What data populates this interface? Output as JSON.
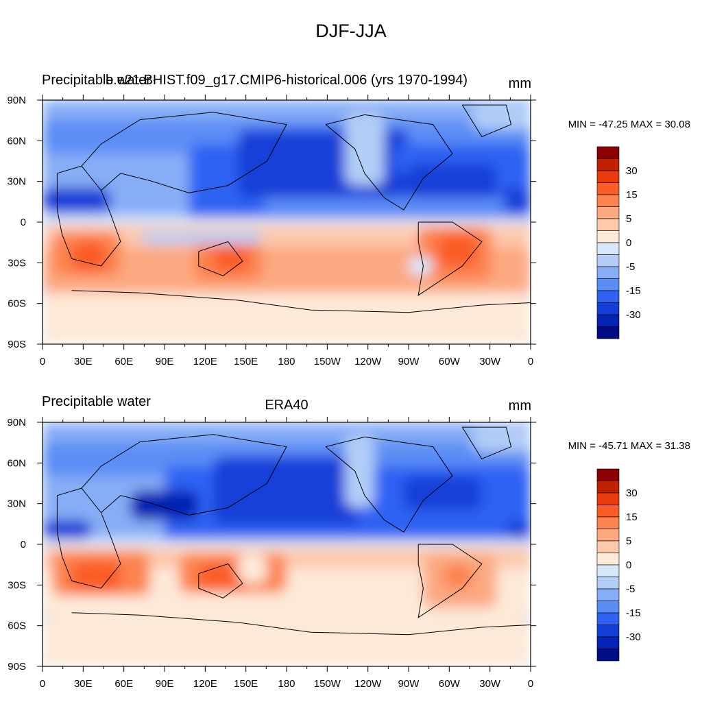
{
  "title": "DJF-JJA",
  "colorbar": {
    "colors": [
      "#8b0000",
      "#c02200",
      "#e83a0a",
      "#fb5b26",
      "#fc8350",
      "#fca881",
      "#fcc9ad",
      "#fde9d8",
      "#d8e8fb",
      "#b3cdf7",
      "#87adf6",
      "#5b8ef5",
      "#2f62f3",
      "#163fd8",
      "#0423b4",
      "#000c85"
    ],
    "labels": [
      "30",
      "15",
      "5",
      "0",
      "-5",
      "-15",
      "-30"
    ]
  },
  "axes": {
    "x_ticks": [
      "0",
      "30E",
      "60E",
      "90E",
      "120E",
      "150E",
      "180",
      "150W",
      "120W",
      "90W",
      "60W",
      "30W",
      "0"
    ],
    "y_ticks": [
      "90N",
      "60N",
      "30N",
      "0",
      "30S",
      "60S",
      "90S"
    ]
  },
  "panels": [
    {
      "left_title": "Precipitable water",
      "center_title": "b.e21.BHIST.f09_g17.CMIP6-historical.006 (yrs 1970-1994)",
      "units": "mm",
      "minmax": "MIN = -47.25 MAX =  30.08"
    },
    {
      "left_title": "Precipitable water",
      "center_title": "ERA40",
      "units": "mm",
      "minmax": "MIN = -45.71 MAX =  31.38"
    }
  ],
  "chart_data": [
    {
      "type": "heatmap",
      "title": "DJF-JJA",
      "subtitle": "b.e21.BHIST.f09_g17.CMIP6-historical.006 (yrs 1970-1994)",
      "variable": "Precipitable water",
      "units": "mm",
      "x_ticks": [
        "0",
        "30E",
        "60E",
        "90E",
        "120E",
        "150E",
        "180",
        "150W",
        "120W",
        "90W",
        "60W",
        "30W",
        "0"
      ],
      "y_ticks": [
        "90N",
        "60N",
        "30N",
        "0",
        "30S",
        "60S",
        "90S"
      ],
      "xlim": [
        0,
        360
      ],
      "ylim": [
        -90,
        90
      ],
      "min": -47.25,
      "max": 30.08,
      "colorbar_levels": [
        -40,
        -35,
        -30,
        -25,
        -20,
        -15,
        -10,
        -5,
        0,
        5,
        10,
        15,
        20,
        25,
        30
      ]
    },
    {
      "type": "heatmap",
      "title": "DJF-JJA",
      "subtitle": "ERA40",
      "variable": "Precipitable water",
      "units": "mm",
      "x_ticks": [
        "0",
        "30E",
        "60E",
        "90E",
        "120E",
        "150E",
        "180",
        "150W",
        "120W",
        "90W",
        "60W",
        "30W",
        "0"
      ],
      "y_ticks": [
        "90N",
        "60N",
        "30N",
        "0",
        "30S",
        "60S",
        "90S"
      ],
      "xlim": [
        0,
        360
      ],
      "ylim": [
        -90,
        90
      ],
      "min": -45.71,
      "max": 31.38,
      "colorbar_levels": [
        -40,
        -35,
        -30,
        -25,
        -20,
        -15,
        -10,
        -5,
        0,
        5,
        10,
        15,
        20,
        25,
        30
      ]
    }
  ]
}
